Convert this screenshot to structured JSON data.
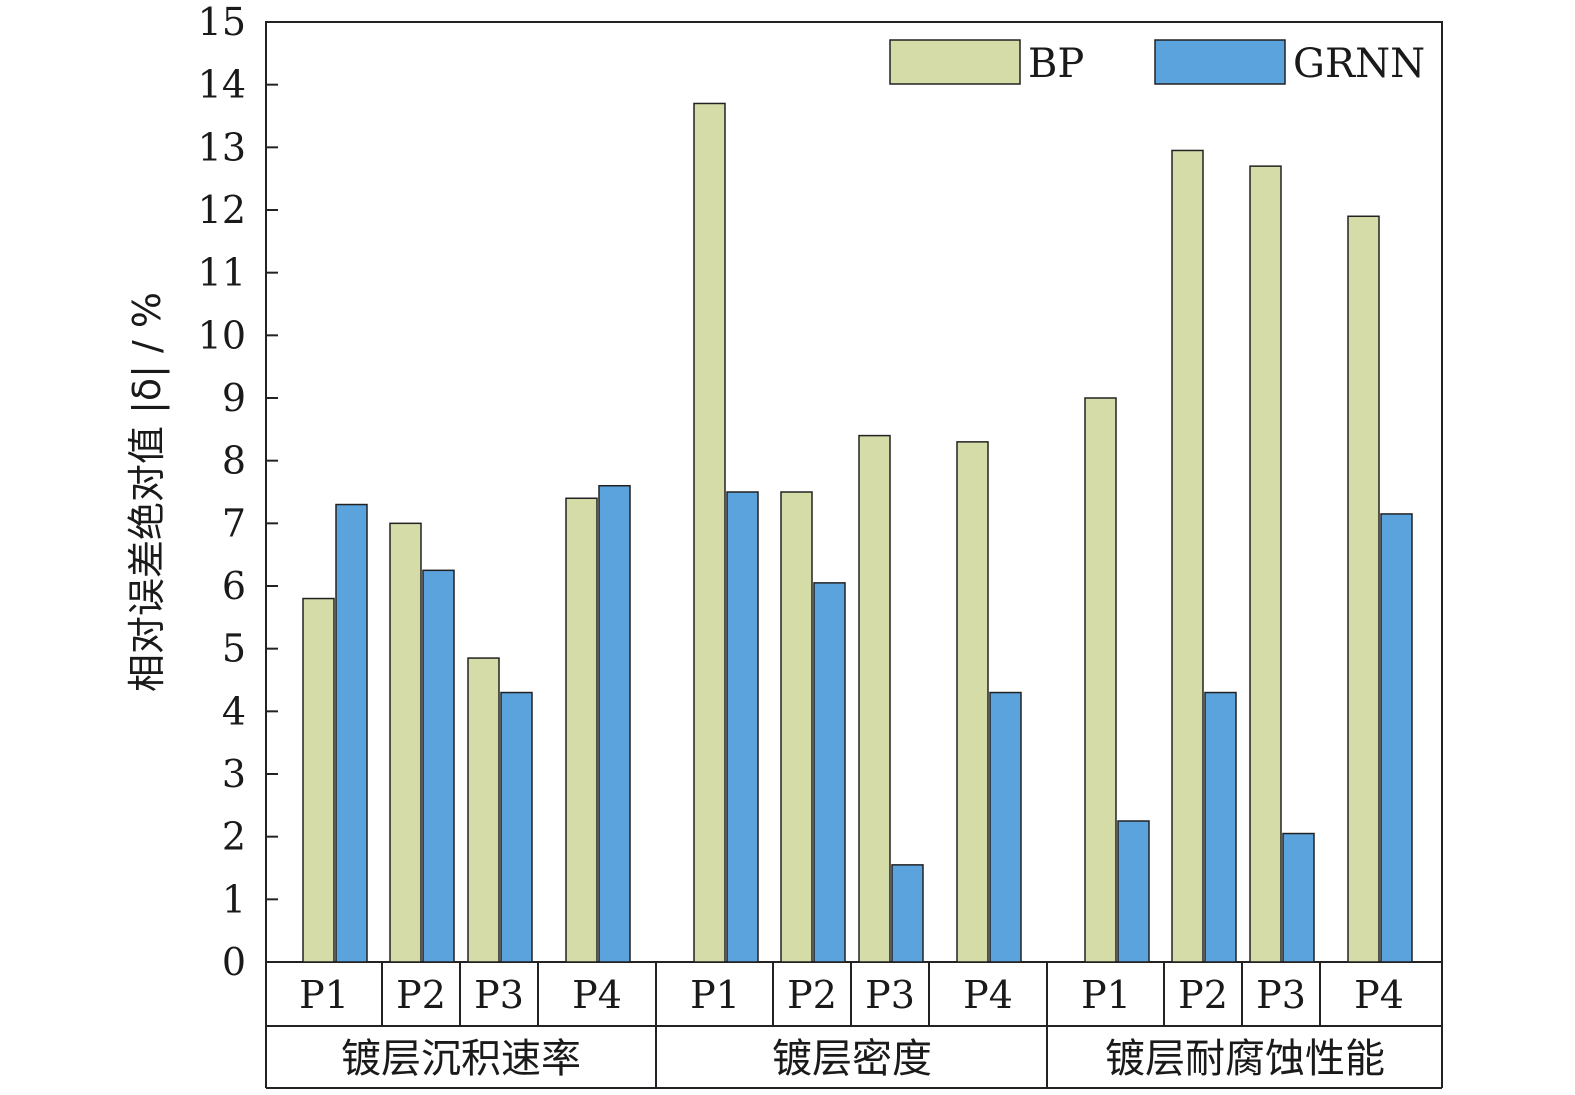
{
  "chart_data": {
    "type": "bar",
    "ylabel": "相对误差绝对值 |δ| / %",
    "ylim": [
      0,
      15
    ],
    "yticks": [
      0,
      1,
      2,
      3,
      4,
      5,
      6,
      7,
      8,
      9,
      10,
      11,
      12,
      13,
      14,
      15
    ],
    "legend_position": "top-right",
    "grid": false,
    "groups": [
      {
        "label": "镀层沉积速率",
        "categories": [
          "P1",
          "P2",
          "P3",
          "P4"
        ]
      },
      {
        "label": "镀层密度",
        "categories": [
          "P1",
          "P2",
          "P3",
          "P4"
        ]
      },
      {
        "label": "镀层耐腐蚀性能",
        "categories": [
          "P1",
          "P2",
          "P3",
          "P4"
        ]
      }
    ],
    "series": [
      {
        "name": "BP",
        "color": "#d6dca8",
        "values": [
          5.8,
          7.0,
          4.85,
          7.4,
          13.7,
          7.5,
          8.4,
          8.3,
          9.0,
          12.95,
          12.7,
          11.9
        ]
      },
      {
        "name": "GRNN",
        "color": "#5ba3dd",
        "values": [
          7.3,
          6.25,
          4.3,
          7.6,
          7.5,
          6.05,
          1.55,
          4.3,
          2.25,
          4.3,
          2.05,
          7.15
        ]
      }
    ]
  }
}
